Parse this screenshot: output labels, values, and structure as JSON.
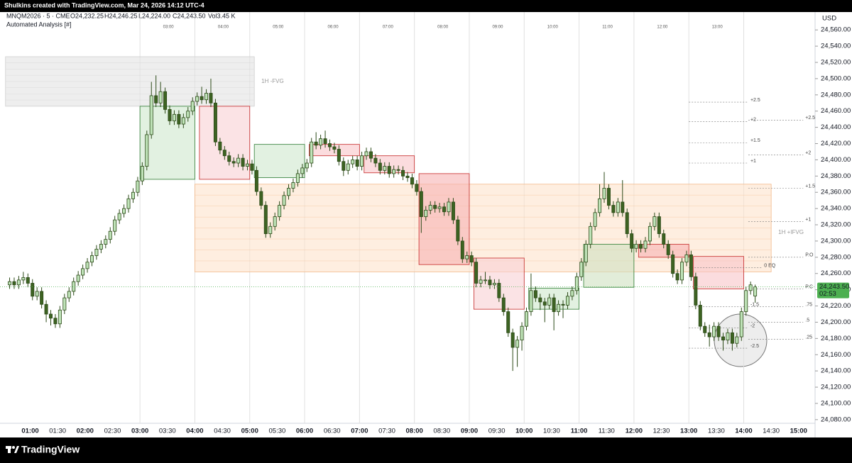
{
  "header": {
    "credit": "Shulkins created with TradingView.com, Mar 24, 2026 14:12 UTC-4",
    "symbol": "MNQM2026 · 5 · CME",
    "ohlc": [
      "O24,232.25",
      "H24,246.25",
      "L24,224.00",
      "C24,243.50",
      "Vol3.45 K"
    ],
    "indicator": "Automated Analysis [#]",
    "brand": "TradingView"
  },
  "chart_data": {
    "type": "candlestick",
    "y_unit": "USD",
    "price_label": "24,243.50",
    "countdown": "02:53",
    "up_color": "#bfe3b8",
    "down_color": "#3d6322",
    "wick_color": "#2c4a18",
    "xlim": [
      "00:27",
      "15:18"
    ],
    "ylim": [
      24075.5,
      24582
    ],
    "x": [
      "00:35",
      "00:40",
      "00:45",
      "00:50",
      "00:55",
      "01:00",
      "01:05",
      "01:10",
      "01:15",
      "01:20",
      "01:25",
      "01:30",
      "01:35",
      "01:40",
      "01:45",
      "01:50",
      "01:55",
      "02:00",
      "02:05",
      "02:10",
      "02:15",
      "02:20",
      "02:25",
      "02:30",
      "02:35",
      "02:40",
      "02:45",
      "02:50",
      "02:55",
      "03:00",
      "03:05",
      "03:10",
      "03:15",
      "03:20",
      "03:25",
      "03:30",
      "03:35",
      "03:40",
      "03:45",
      "03:50",
      "03:55",
      "04:00",
      "04:05",
      "04:10",
      "04:15",
      "04:20",
      "04:25",
      "04:30",
      "04:35",
      "04:40",
      "04:45",
      "04:50",
      "04:55",
      "05:00",
      "05:05",
      "05:10",
      "05:15",
      "05:20",
      "05:25",
      "05:30",
      "05:35",
      "05:40",
      "05:45",
      "05:50",
      "05:55",
      "06:00",
      "06:05",
      "06:10",
      "06:15",
      "06:20",
      "06:25",
      "06:30",
      "06:35",
      "06:40",
      "06:45",
      "06:50",
      "06:55",
      "07:00",
      "07:05",
      "07:10",
      "07:15",
      "07:20",
      "07:25",
      "07:30",
      "07:35",
      "07:40",
      "07:45",
      "07:50",
      "07:55",
      "08:00",
      "08:05",
      "08:10",
      "08:15",
      "08:20",
      "08:25",
      "08:30",
      "08:35",
      "08:40",
      "08:45",
      "08:50",
      "08:55",
      "09:00",
      "09:05",
      "09:10",
      "09:15",
      "09:20",
      "09:25",
      "09:30",
      "09:35",
      "09:40",
      "09:45",
      "09:50",
      "09:55",
      "10:00",
      "10:05",
      "10:10",
      "10:15",
      "10:20",
      "10:25",
      "10:30",
      "10:35",
      "10:40",
      "10:45",
      "10:50",
      "10:55",
      "11:00",
      "11:05",
      "11:10",
      "11:15",
      "11:20",
      "11:25",
      "11:30",
      "11:35",
      "11:40",
      "11:45",
      "11:50",
      "11:55",
      "12:00",
      "12:05",
      "12:10",
      "12:15",
      "12:20",
      "12:25",
      "12:30",
      "12:35",
      "12:40",
      "12:45",
      "12:50",
      "12:55",
      "13:00",
      "13:05",
      "13:10",
      "13:15",
      "13:20",
      "13:25",
      "13:30",
      "13:35",
      "13:40",
      "13:45",
      "13:50",
      "13:55",
      "14:00",
      "14:05",
      "14:10"
    ],
    "open": [
      24246,
      24250,
      24246,
      24252,
      24255,
      24248,
      24232,
      24238,
      24222,
      24210,
      24205,
      24198,
      24215,
      24230,
      24238,
      24250,
      24258,
      24266,
      24274,
      24282,
      24290,
      24296,
      24302,
      24312,
      24326,
      24334,
      24340,
      24352,
      24360,
      24374,
      24392,
      24431,
      24479,
      24470,
      24484,
      24462,
      24448,
      24456,
      24444,
      24452,
      24460,
      24472,
      24478,
      24474,
      24482,
      24470,
      24422,
      24412,
      24405,
      24398,
      24396,
      24402,
      24392,
      24395,
      24387,
      24361,
      24344,
      24309,
      24318,
      24330,
      24344,
      24356,
      24365,
      24372,
      24383,
      24390,
      24396,
      24422,
      24418,
      24426,
      24420,
      24416,
      24413,
      24398,
      24387,
      24395,
      24400,
      24392,
      24405,
      24410,
      24402,
      24396,
      24387,
      24392,
      24383,
      24388,
      24387,
      24380,
      24378,
      24370,
      24361,
      24330,
      24338,
      24344,
      24340,
      24342,
      24336,
      24348,
      24326,
      24300,
      24278,
      24282,
      24274,
      24248,
      24252,
      24252,
      24246,
      24248,
      24230,
      24213,
      24187,
      24169,
      24178,
      24195,
      24213,
      24239,
      24230,
      24225,
      24221,
      24230,
      24213,
      24222,
      24221,
      24232,
      24239,
      24256,
      24274,
      24296,
      24318,
      24335,
      24352,
      24365,
      24344,
      24335,
      24348,
      24335,
      24309,
      24291,
      24296,
      24291,
      24300,
      24318,
      24330,
      24309,
      24296,
      24283,
      24260,
      24252,
      24274,
      24283,
      24256,
      24221,
      24195,
      24187,
      24182,
      24195,
      24182,
      24178,
      24187,
      24174,
      24182,
      24213,
      24239,
      24232.25
    ],
    "high": [
      24255,
      24255,
      24257,
      24262,
      24260,
      24253,
      24243,
      24243,
      24227,
      24215,
      24210,
      24220,
      24235,
      24243,
      24255,
      24263,
      24271,
      24279,
      24287,
      24295,
      24301,
      24307,
      24317,
      24331,
      24339,
      24345,
      24357,
      24365,
      24379,
      24397,
      24436,
      24496,
      24504,
      24496,
      24489,
      24467,
      24461,
      24461,
      24457,
      24465,
      24477,
      24483,
      24490,
      24487,
      24500,
      24475,
      24427,
      24417,
      24410,
      24403,
      24407,
      24407,
      24400,
      24400,
      24392,
      24366,
      24349,
      24323,
      24335,
      24349,
      24361,
      24370,
      24377,
      24388,
      24395,
      24401,
      24427,
      24434,
      24431,
      24436,
      24425,
      24421,
      24418,
      24403,
      24400,
      24405,
      24405,
      24410,
      24415,
      24415,
      24407,
      24401,
      24397,
      24397,
      24393,
      24393,
      24392,
      24385,
      24383,
      24375,
      24366,
      24343,
      24349,
      24349,
      24347,
      24347,
      24353,
      24353,
      24331,
      24305,
      24287,
      24287,
      24279,
      24257,
      24262,
      24257,
      24253,
      24253,
      24235,
      24218,
      24192,
      24183,
      24200,
      24218,
      24260,
      24244,
      24235,
      24230,
      24235,
      24235,
      24227,
      24227,
      24237,
      24244,
      24261,
      24279,
      24301,
      24323,
      24340,
      24370,
      24385,
      24370,
      24349,
      24353,
      24375,
      24340,
      24314,
      24301,
      24301,
      24305,
      24323,
      24335,
      24335,
      24314,
      24301,
      24288,
      24265,
      24279,
      24288,
      24288,
      24261,
      24226,
      24200,
      24197,
      24200,
      24200,
      24187,
      24192,
      24192,
      24187,
      24218,
      24244,
      24250,
      24246.25
    ],
    "low": [
      24241,
      24241,
      24241,
      24247,
      24243,
      24227,
      24227,
      24217,
      24200,
      24196,
      24193,
      24193,
      24210,
      24225,
      24233,
      24245,
      24253,
      24261,
      24269,
      24277,
      24285,
      24291,
      24297,
      24307,
      24321,
      24329,
      24335,
      24347,
      24355,
      24369,
      24387,
      24426,
      24465,
      24465,
      24457,
      24443,
      24443,
      24439,
      24439,
      24447,
      24455,
      24467,
      24469,
      24469,
      24465,
      24417,
      24407,
      24400,
      24393,
      24391,
      24391,
      24387,
      24387,
      24382,
      24356,
      24339,
      24304,
      24304,
      24313,
      24325,
      24339,
      24351,
      24360,
      24367,
      24378,
      24385,
      24391,
      24413,
      24413,
      24415,
      24411,
      24408,
      24393,
      24380,
      24382,
      24390,
      24387,
      24387,
      24400,
      24397,
      24391,
      24382,
      24382,
      24378,
      24378,
      24382,
      24375,
      24373,
      24365,
      24356,
      24310,
      24325,
      24333,
      24335,
      24335,
      24331,
      24331,
      24321,
      24295,
      24273,
      24273,
      24269,
      24243,
      24243,
      24247,
      24241,
      24241,
      24225,
      24208,
      24182,
      24140,
      24145,
      24165,
      24190,
      24208,
      24225,
      24215,
      24200,
      24216,
      24190,
      24208,
      24205,
      24216,
      24227,
      24234,
      24251,
      24269,
      24291,
      24313,
      24330,
      24347,
      24339,
      24330,
      24330,
      24330,
      24304,
      24286,
      24286,
      24286,
      24286,
      24295,
      24313,
      24304,
      24291,
      24278,
      24255,
      24247,
      24247,
      24269,
      24251,
      24216,
      24190,
      24182,
      24170,
      24177,
      24177,
      24165,
      24173,
      24165,
      24169,
      24177,
      24208,
      24234,
      24224
    ],
    "close": [
      24250,
      24246,
      24252,
      24255,
      24248,
      24232,
      24238,
      24222,
      24210,
      24205,
      24198,
      24215,
      24230,
      24238,
      24250,
      24258,
      24266,
      24274,
      24282,
      24290,
      24296,
      24302,
      24312,
      24326,
      24334,
      24340,
      24352,
      24360,
      24374,
      24392,
      24431,
      24479,
      24470,
      24484,
      24462,
      24448,
      24456,
      24444,
      24452,
      24460,
      24472,
      24478,
      24474,
      24482,
      24470,
      24422,
      24412,
      24405,
      24398,
      24396,
      24402,
      24392,
      24395,
      24387,
      24361,
      24344,
      24309,
      24318,
      24330,
      24344,
      24356,
      24365,
      24372,
      24383,
      24390,
      24396,
      24422,
      24418,
      24426,
      24420,
      24416,
      24413,
      24398,
      24387,
      24395,
      24400,
      24392,
      24405,
      24410,
      24402,
      24396,
      24387,
      24392,
      24383,
      24388,
      24387,
      24380,
      24378,
      24370,
      24361,
      24330,
      24338,
      24344,
      24340,
      24342,
      24336,
      24348,
      24326,
      24300,
      24278,
      24282,
      24274,
      24248,
      24252,
      24252,
      24246,
      24248,
      24230,
      24213,
      24187,
      24169,
      24178,
      24195,
      24213,
      24239,
      24230,
      24225,
      24221,
      24230,
      24213,
      24222,
      24221,
      24232,
      24239,
      24256,
      24274,
      24296,
      24318,
      24335,
      24352,
      24365,
      24344,
      24335,
      24348,
      24335,
      24309,
      24291,
      24296,
      24291,
      24300,
      24318,
      24330,
      24309,
      24296,
      24283,
      24260,
      24252,
      24274,
      24283,
      24256,
      24221,
      24195,
      24187,
      24182,
      24195,
      24182,
      24178,
      24187,
      24174,
      24182,
      24213,
      24239,
      24246,
      24243.5
    ],
    "yticks": [
      {
        "value": 24080,
        "label": "24,080.00"
      },
      {
        "value": 24100,
        "label": "24,100.00"
      },
      {
        "value": 24120,
        "label": "24,120.00"
      },
      {
        "value": 24140,
        "label": "24,140.00"
      },
      {
        "value": 24160,
        "label": "24,160.00"
      },
      {
        "value": 24180,
        "label": "24,180.00"
      },
      {
        "value": 24200,
        "label": "24,200.00"
      },
      {
        "value": 24220,
        "label": "24,220.00"
      },
      {
        "value": 24240,
        "label": "24,240.00"
      },
      {
        "value": 24260,
        "label": "24,260.00"
      },
      {
        "value": 24280,
        "label": "24,280.00"
      },
      {
        "value": 24300,
        "label": "24,300.00"
      },
      {
        "value": 24320,
        "label": "24,320.00"
      },
      {
        "value": 24340,
        "label": "24,340.00"
      },
      {
        "value": 24360,
        "label": "24,360.00"
      },
      {
        "value": 24380,
        "label": "24,380.00"
      },
      {
        "value": 24400,
        "label": "24,400.00"
      },
      {
        "value": 24420,
        "label": "24,420.00"
      },
      {
        "value": 24440,
        "label": "24,440.00"
      },
      {
        "value": 24460,
        "label": "24,460.00"
      },
      {
        "value": 24480,
        "label": "24,480.00"
      },
      {
        "value": 24500,
        "label": "24,500.00"
      },
      {
        "value": 24520,
        "label": "24,520.00"
      },
      {
        "value": 24540,
        "label": "24,540.00"
      },
      {
        "value": 24560,
        "label": "24,560.00"
      }
    ],
    "xticks": [
      "01:00",
      "01:30",
      "02:00",
      "02:30",
      "03:00",
      "03:30",
      "04:00",
      "04:30",
      "05:00",
      "05:30",
      "06:00",
      "06:30",
      "07:00",
      "07:30",
      "08:00",
      "08:30",
      "09:00",
      "09:30",
      "10:00",
      "10:30",
      "11:00",
      "11:30",
      "12:00",
      "12:30",
      "13:00",
      "13:30",
      "14:00",
      "14:30",
      "15:00"
    ],
    "top_labels": [
      "03:00",
      "04:00",
      "05:00",
      "06:00",
      "07:00",
      "08:00",
      "09:00",
      "10:00",
      "11:00",
      "12:00",
      "13:00"
    ],
    "zones": [
      {
        "x": [
          "00:33",
          "05:05"
        ],
        "y": [
          24466,
          24527
        ],
        "color": "#e3e3e3",
        "border": "#cfcfcf",
        "label": "1H -FVG"
      },
      {
        "x": [
          "04:00",
          "14:30"
        ],
        "y": [
          24262,
          24370
        ],
        "color": "#fde3cc",
        "border": "#f3b98a",
        "label": "1H +IFVG"
      },
      {
        "x": [
          "03:00",
          "04:00"
        ],
        "y": [
          24376,
          24466
        ],
        "color": "#cfe8cd",
        "border": "#2e7d32"
      },
      {
        "x": [
          "04:05",
          "05:00"
        ],
        "y": [
          24376,
          24466
        ],
        "color": "#f9d0d4",
        "border": "#c62828"
      },
      {
        "x": [
          "05:05",
          "06:00"
        ],
        "y": [
          24378,
          24419
        ],
        "color": "#cfe8cd",
        "border": "#2e7d32"
      },
      {
        "x": [
          "06:05",
          "07:00"
        ],
        "y": [
          24405,
          24419
        ],
        "color": "#f9c4c8",
        "border": "#c62828"
      },
      {
        "x": [
          "07:05",
          "08:00"
        ],
        "y": [
          24384,
          24405
        ],
        "color": "#f9c4c8",
        "border": "#c62828"
      },
      {
        "x": [
          "08:05",
          "09:00"
        ],
        "y": [
          24271,
          24383
        ],
        "color": "#f7b3b3",
        "border": "#c62828"
      },
      {
        "x": [
          "09:05",
          "10:00"
        ],
        "y": [
          24216,
          24279
        ],
        "color": "#f9d0d4",
        "border": "#c62828"
      },
      {
        "x": [
          "10:05",
          "11:00"
        ],
        "y": [
          24216,
          24242
        ],
        "color": "#cfe8cd",
        "border": "#2e7d32"
      },
      {
        "x": [
          "11:05",
          "12:00"
        ],
        "y": [
          24243,
          24296
        ],
        "color": "#cfe1bf",
        "border": "#2e7d32"
      },
      {
        "x": [
          "12:05",
          "13:00"
        ],
        "y": [
          24280,
          24296
        ],
        "color": "#f7b3b3",
        "border": "#c62828"
      },
      {
        "x": [
          "13:05",
          "14:00"
        ],
        "y": [
          24241,
          24281
        ],
        "color": "#f9c4c8",
        "border": "#c62828"
      }
    ],
    "levels": [
      {
        "label": "+2.5",
        "price": 24471,
        "x": [
          "13:00",
          "14:05"
        ]
      },
      {
        "label": "+2",
        "price": 24447,
        "x": [
          "13:00",
          "14:05"
        ]
      },
      {
        "label": "+1.5",
        "price": 24421,
        "x": [
          "13:00",
          "14:05"
        ]
      },
      {
        "label": "+1",
        "price": 24396,
        "x": [
          "13:00",
          "14:05"
        ]
      },
      {
        "label": "+2.5",
        "price": 24449,
        "x": [
          "14:05",
          "15:05"
        ]
      },
      {
        "label": "+2",
        "price": 24406,
        "x": [
          "14:05",
          "15:05"
        ]
      },
      {
        "label": "+1.5",
        "price": 24365,
        "x": [
          "14:05",
          "15:05"
        ]
      },
      {
        "label": "+1",
        "price": 24324,
        "x": [
          "14:05",
          "15:05"
        ]
      },
      {
        "label": "P.O",
        "price": 24280,
        "x": [
          "14:05",
          "15:05"
        ]
      },
      {
        "label": "P.C",
        "price": 24241,
        "x": [
          "14:05",
          "15:05"
        ]
      },
      {
        "label": ".75",
        "price": 24219,
        "x": [
          "14:05",
          "15:05"
        ]
      },
      {
        "label": ".5",
        "price": 24200,
        "x": [
          "14:05",
          "15:05"
        ]
      },
      {
        "label": ".25",
        "price": 24179,
        "x": [
          "14:05",
          "15:05"
        ]
      },
      {
        "label": "-1.5",
        "price": 24219,
        "x": [
          "13:00",
          "14:05"
        ]
      },
      {
        "label": "-2",
        "price": 24193,
        "x": [
          "13:00",
          "14:05"
        ]
      },
      {
        "label": "-2.5",
        "price": 24168,
        "x": [
          "13:00",
          "14:05"
        ]
      },
      {
        "label": "0 EQ",
        "price": 24267,
        "x": [
          "13:00",
          "14:20"
        ]
      }
    ]
  }
}
